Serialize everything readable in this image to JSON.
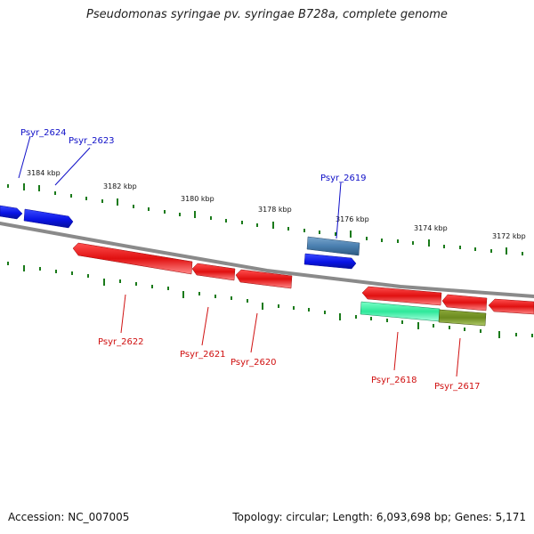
{
  "title": "Pseudomonas syringae pv. syringae B728a, complete genome",
  "footer": {
    "accession": "Accession: NC_007005",
    "summary": "Topology: circular; Length: 6,093,698 bp; Genes: 5,171"
  },
  "colors": {
    "forward_gene": "#0a14e6",
    "forward_gene_highlight": "#4a7fb0",
    "reverse_gene": "#e01010",
    "reverse_gene_cyan": "#2ee89a",
    "reverse_gene_olive": "#6b8a1e",
    "backbone": "#8a8a8a",
    "tick": "#1a7a1a",
    "forward_label": "#1010c8",
    "reverse_label": "#d01010"
  },
  "scale": {
    "unit": "kbp",
    "labels": [
      "3184 kbp",
      "3182 kbp",
      "3180 kbp",
      "3178 kbp",
      "3176 kbp",
      "3174 kbp",
      "3172 kbp"
    ]
  },
  "genes": {
    "forward": [
      {
        "name": "Psyr_2624",
        "color": "forward_gene"
      },
      {
        "name": "Psyr_2623",
        "color": "forward_gene"
      },
      {
        "name": "Psyr_2619",
        "color": "forward_gene"
      }
    ],
    "reverse": [
      {
        "name": "Psyr_2622",
        "color": "reverse_gene"
      },
      {
        "name": "Psyr_2621",
        "color": "reverse_gene"
      },
      {
        "name": "Psyr_2620",
        "color": "reverse_gene"
      },
      {
        "name": "Psyr_2618",
        "color": "reverse_gene_cyan"
      },
      {
        "name": "Psyr_2617",
        "color": "reverse_gene_olive"
      }
    ]
  }
}
